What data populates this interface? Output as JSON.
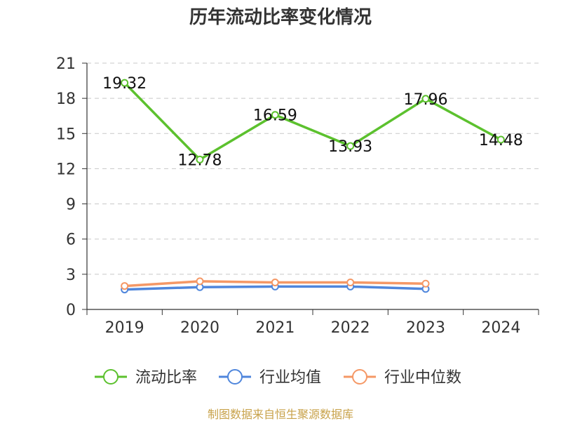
{
  "chart_data": {
    "type": "line",
    "title": "历年流动比率变化情况",
    "categories": [
      "2019",
      "2020",
      "2021",
      "2022",
      "2023",
      "2024"
    ],
    "ylim": [
      0,
      21
    ],
    "yticks": [
      0,
      3,
      6,
      9,
      12,
      15,
      18,
      21
    ],
    "grid": true,
    "legend_position": "bottom",
    "series": [
      {
        "name": "流动比率",
        "color": "#5cc12e",
        "values": [
          19.32,
          12.78,
          16.59,
          13.93,
          17.96,
          14.48
        ],
        "labels": [
          "19.32",
          "12.78",
          "16.59",
          "13.93",
          "17.96",
          "14.48"
        ]
      },
      {
        "name": "行业均值",
        "color": "#4f86dc",
        "values": [
          1.7,
          1.9,
          1.95,
          1.95,
          1.75,
          null
        ]
      },
      {
        "name": "行业中位数",
        "color": "#f59866",
        "values": [
          2.0,
          2.4,
          2.3,
          2.3,
          2.2,
          null
        ]
      }
    ],
    "source": "制图数据来自恒生聚源数据库"
  }
}
